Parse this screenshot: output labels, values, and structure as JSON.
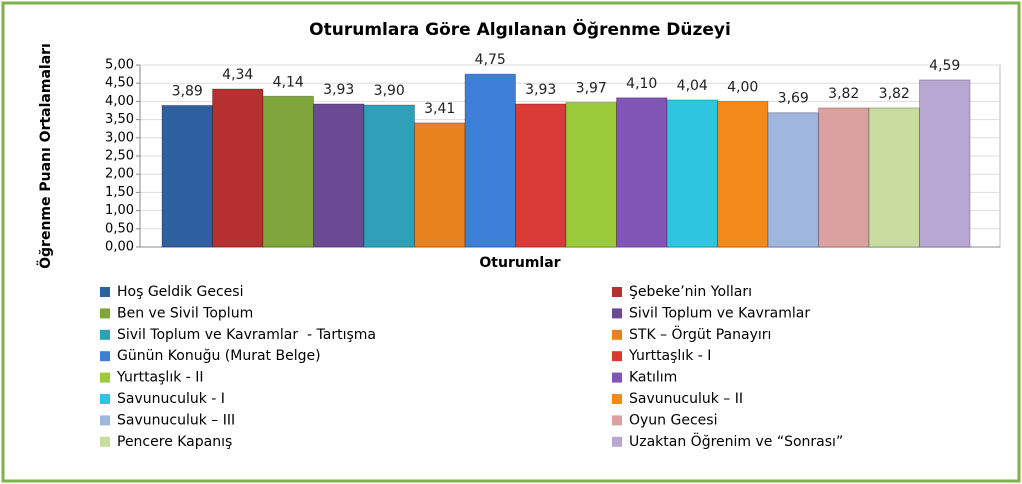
{
  "chart_data": {
    "type": "bar",
    "title": "Oturumlara Göre Algılanan Öğrenme Düzeyi",
    "x_label": "Oturumlar",
    "y_label": "Öğrenme Puanı Ortalamaları",
    "categories": [
      null
    ],
    "ylim": [
      0,
      5
    ],
    "yticks": [
      {
        "value": 0,
        "label": "0,00"
      },
      {
        "value": 0.5,
        "label": "0,50"
      },
      {
        "value": 1,
        "label": "1,00"
      },
      {
        "value": 1.5,
        "label": "1,50"
      },
      {
        "value": 2,
        "label": "2,00"
      },
      {
        "value": 2.5,
        "label": "2,50"
      },
      {
        "value": 3,
        "label": "3,00"
      },
      {
        "value": 3.5,
        "label": "3,50"
      },
      {
        "value": 4,
        "label": "4,00"
      },
      {
        "value": 4.5,
        "label": "4,50"
      },
      {
        "value": 5,
        "label": "5,00"
      }
    ],
    "grid": true,
    "legend": "bottom",
    "series": [
      {
        "name": "Hoş Geldik Gecesi",
        "color": "#2e5f9e",
        "values": [
          3.89
        ],
        "value_labels": [
          "3,89"
        ]
      },
      {
        "name": "Şebeke’nin Yolları",
        "color": "#b5302e",
        "values": [
          4.34
        ],
        "value_labels": [
          "4,34"
        ]
      },
      {
        "name": "Ben ve Sivil Toplum",
        "color": "#7ea63a",
        "values": [
          4.14
        ],
        "value_labels": [
          "4,14"
        ]
      },
      {
        "name": "Sivil Toplum ve Kavramlar",
        "color": "#6a4a94",
        "values": [
          3.93
        ],
        "value_labels": [
          "3,93"
        ]
      },
      {
        "name": "Sivil Toplum ve Kavramlar  - Tartışma",
        "color": "#2ea0b8",
        "values": [
          3.9
        ],
        "value_labels": [
          "3,90"
        ]
      },
      {
        "name": "STK – Örgüt Panayırı",
        "color": "#e8821e",
        "values": [
          3.41
        ],
        "value_labels": [
          "3,41"
        ]
      },
      {
        "name": "Günün Konuğu (Murat Belge)",
        "color": "#3d7fd6",
        "values": [
          4.75
        ],
        "value_labels": [
          "4,75"
        ]
      },
      {
        "name": "Yurttaşlık - I",
        "color": "#d93a36",
        "values": [
          3.93
        ],
        "value_labels": [
          "3,93"
        ]
      },
      {
        "name": "Yurttaşlık - II",
        "color": "#9bcb3b",
        "values": [
          3.97
        ],
        "value_labels": [
          "3,97"
        ]
      },
      {
        "name": "Katılım",
        "color": "#8155b5",
        "values": [
          4.1
        ],
        "value_labels": [
          "4,10"
        ]
      },
      {
        "name": "Savunuculuk - I",
        "color": "#2ec5e0",
        "values": [
          4.04
        ],
        "value_labels": [
          "4,04"
        ]
      },
      {
        "name": "Savunuculuk – II",
        "color": "#f28a1a",
        "values": [
          4.0
        ],
        "value_labels": [
          "4,00"
        ]
      },
      {
        "name": "Savunuculuk – III",
        "color": "#9fb6df",
        "values": [
          3.69
        ],
        "value_labels": [
          "3,69"
        ]
      },
      {
        "name": "Oyun Gecesi",
        "color": "#dba1a0",
        "values": [
          3.82
        ],
        "value_labels": [
          "3,82"
        ]
      },
      {
        "name": "Pencere Kapanış",
        "color": "#c9dca0",
        "values": [
          3.82
        ],
        "value_labels": [
          "3,82"
        ]
      },
      {
        "name": "Uzaktan Öğrenim ve “Sonrası”",
        "color": "#b9a7d3",
        "values": [
          4.59
        ],
        "value_labels": [
          "4,59"
        ]
      }
    ]
  }
}
